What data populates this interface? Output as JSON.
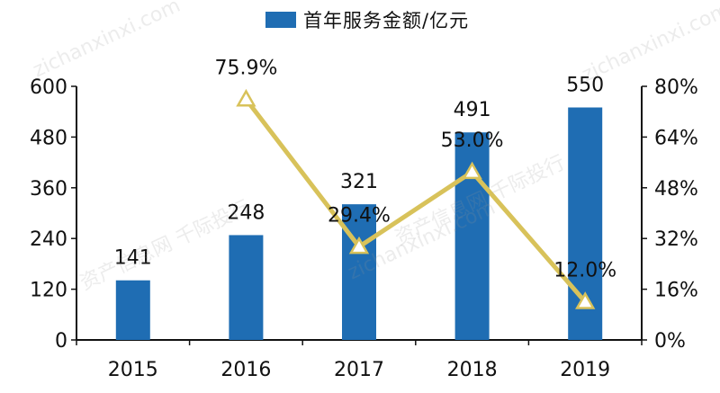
{
  "chart_data": {
    "type": "bar",
    "categories": [
      "2015",
      "2016",
      "2017",
      "2018",
      "2019"
    ],
    "series": [
      {
        "name": "首年服务金额/亿元",
        "type": "bar",
        "axis": "left",
        "values": [
          141,
          248,
          321,
          491,
          550
        ],
        "labels": [
          "141",
          "248",
          "321",
          "491",
          "550"
        ]
      },
      {
        "name": "",
        "type": "line",
        "axis": "right",
        "values": [
          null,
          75.9,
          29.4,
          53.0,
          12.0
        ],
        "labels": [
          "",
          "75.9%",
          "29.4%",
          "53.0%",
          "12.0%"
        ]
      }
    ],
    "left_axis": {
      "ylim": [
        0,
        600
      ],
      "ticks": [
        "0",
        "120",
        "240",
        "360",
        "480",
        "600"
      ]
    },
    "right_axis": {
      "ylim": [
        0,
        80
      ],
      "unit": "%",
      "ticks": [
        "0%",
        "16%",
        "32%",
        "48%",
        "64%",
        "80%"
      ]
    },
    "legend": "top-center",
    "grid": false,
    "colors": {
      "bar": "#1f6db3",
      "line": "#d8c25a",
      "marker_fill": "#ffffff"
    }
  },
  "watermarks": [
    "资产信息网 千际投行",
    "zichanxinxi.com"
  ]
}
